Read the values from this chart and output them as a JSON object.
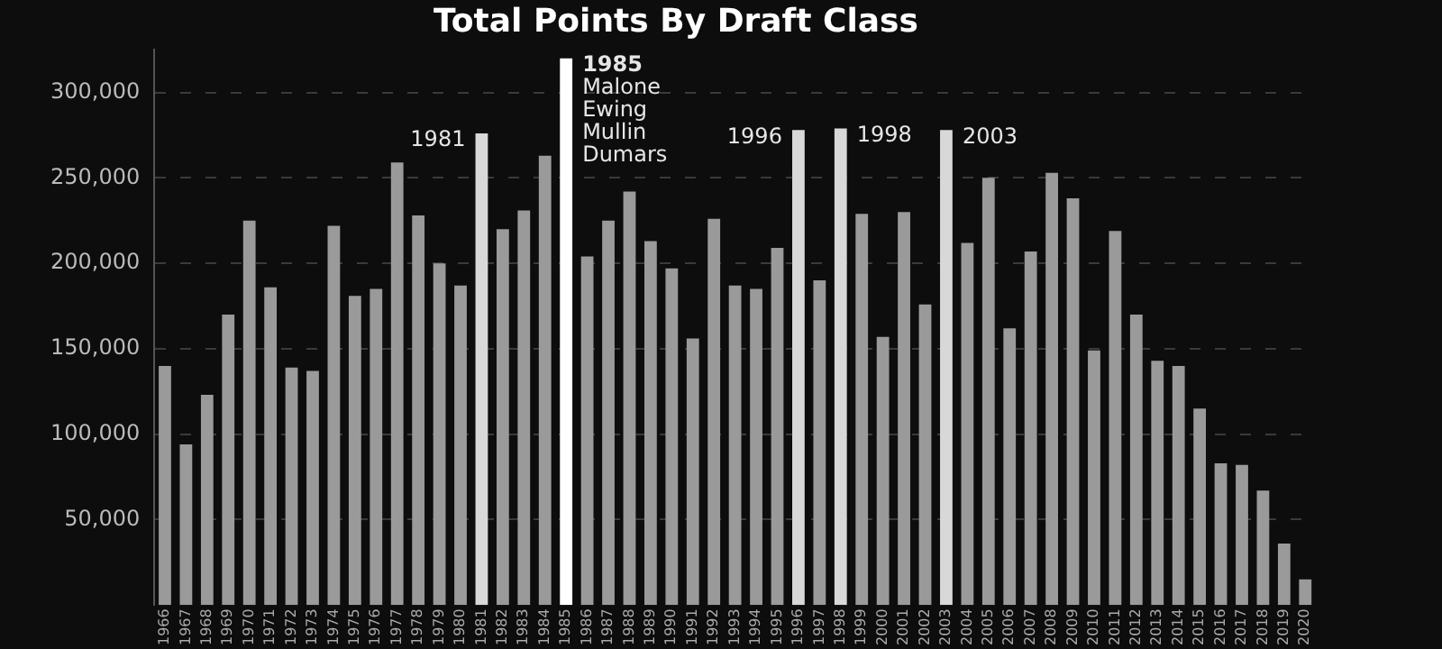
{
  "chart_data": {
    "type": "bar",
    "title": "Total Points By Draft Class",
    "categories": [
      "1966",
      "1967",
      "1968",
      "1969",
      "1970",
      "1971",
      "1972",
      "1973",
      "1974",
      "1975",
      "1976",
      "1977",
      "1978",
      "1979",
      "1980",
      "1981",
      "1982",
      "1983",
      "1984",
      "1985",
      "1986",
      "1987",
      "1988",
      "1989",
      "1990",
      "1991",
      "1992",
      "1993",
      "1994",
      "1995",
      "1996",
      "1997",
      "1998",
      "1999",
      "2000",
      "2001",
      "2002",
      "2003",
      "2004",
      "2005",
      "2006",
      "2007",
      "2008",
      "2009",
      "2010",
      "2011",
      "2012",
      "2013",
      "2014",
      "2015",
      "2016",
      "2017",
      "2018",
      "2019",
      "2020"
    ],
    "values": [
      140000,
      94000,
      123000,
      170000,
      225000,
      186000,
      139000,
      137000,
      222000,
      181000,
      185000,
      259000,
      228000,
      200000,
      187000,
      276000,
      220000,
      231000,
      263000,
      320000,
      204000,
      225000,
      242000,
      213000,
      197000,
      156000,
      226000,
      187000,
      185000,
      209000,
      278000,
      190000,
      279000,
      229000,
      157000,
      230000,
      176000,
      278000,
      212000,
      250000,
      162000,
      207000,
      253000,
      238000,
      149000,
      219000,
      170000,
      143000,
      140000,
      115000,
      83000,
      82000,
      67000,
      36000,
      15000
    ],
    "colors": [
      "#9a9a9a",
      "#9a9a9a",
      "#9a9a9a",
      "#9a9a9a",
      "#9a9a9a",
      "#9a9a9a",
      "#9a9a9a",
      "#9a9a9a",
      "#9a9a9a",
      "#9a9a9a",
      "#9a9a9a",
      "#9a9a9a",
      "#9a9a9a",
      "#9a9a9a",
      "#9a9a9a",
      "#d8d8d8",
      "#9a9a9a",
      "#9a9a9a",
      "#9a9a9a",
      "#ffffff",
      "#9a9a9a",
      "#9a9a9a",
      "#9a9a9a",
      "#9a9a9a",
      "#9a9a9a",
      "#9a9a9a",
      "#9a9a9a",
      "#9a9a9a",
      "#9a9a9a",
      "#9a9a9a",
      "#d8d8d8",
      "#9a9a9a",
      "#d8d8d8",
      "#9a9a9a",
      "#9a9a9a",
      "#9a9a9a",
      "#9a9a9a",
      "#d8d8d8",
      "#9a9a9a",
      "#9a9a9a",
      "#9a9a9a",
      "#9a9a9a",
      "#9a9a9a",
      "#9a9a9a",
      "#9a9a9a",
      "#9a9a9a",
      "#9a9a9a",
      "#9a9a9a",
      "#9a9a9a",
      "#9a9a9a",
      "#9a9a9a",
      "#9a9a9a",
      "#9a9a9a",
      "#9a9a9a",
      "#9a9a9a"
    ],
    "ylim": [
      0,
      325000
    ],
    "yticks": [
      {
        "value": 50000,
        "label": "50,000"
      },
      {
        "value": 100000,
        "label": "100,000"
      },
      {
        "value": 150000,
        "label": "150,000"
      },
      {
        "value": 200000,
        "label": "200,000"
      },
      {
        "value": 250000,
        "label": "250,000"
      },
      {
        "value": 300000,
        "label": "300,000"
      }
    ],
    "grid": "y",
    "annotations": [
      {
        "text": "1981",
        "x": "1981",
        "y": 276000
      },
      {
        "text": "1985\nMalone\nEwing\nMullin\nDumars",
        "x": "1985",
        "y": 320000
      },
      {
        "text": "1996",
        "x": "1996",
        "y": 278000
      },
      {
        "text": "1998",
        "x": "1998",
        "y": 279000
      },
      {
        "text": "2003",
        "x": "2003",
        "y": 278000
      }
    ]
  }
}
